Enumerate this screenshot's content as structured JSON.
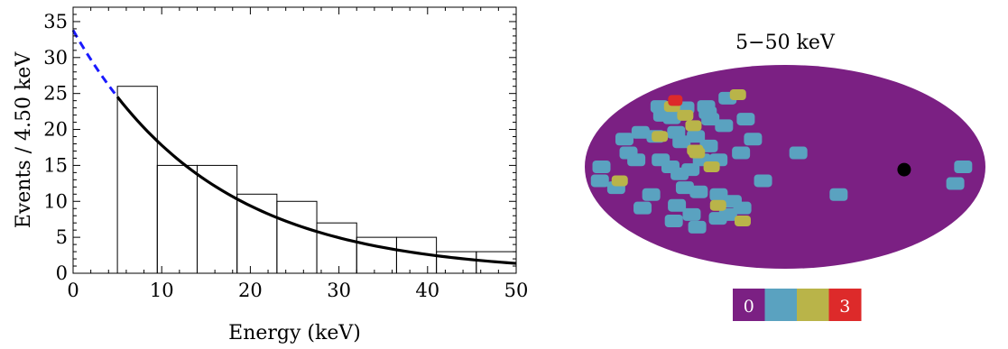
{
  "chart_data": [
    {
      "type": "bar",
      "title": "",
      "xlabel": "Energy (keV)",
      "ylabel": "Events / 4.50 keV",
      "xlim": [
        0,
        50
      ],
      "ylim": [
        0,
        37
      ],
      "xticks": [
        0,
        10,
        20,
        30,
        40,
        50
      ],
      "yticks": [
        0,
        5,
        10,
        15,
        20,
        25,
        30,
        35
      ],
      "bin_edges": [
        5,
        9.5,
        14,
        18.5,
        23,
        27.5,
        32,
        36.5,
        41,
        45.5,
        50
      ],
      "values": [
        26,
        15,
        15,
        11,
        10,
        7,
        5,
        5,
        3,
        3
      ],
      "fit_curve": {
        "form": "exponential",
        "amplitude": 33.8,
        "decay_keV": 15.6,
        "solid_range": [
          5,
          50
        ],
        "dashed_range": [
          0,
          5
        ],
        "solid_color": "#000000",
        "dashed_color": "#1a1aff"
      }
    },
    {
      "type": "heatmap",
      "title": "5−50 keV",
      "projection": "mollweide",
      "colorbar": {
        "colors": [
          "#7b2083",
          "#5aa2c0",
          "#b9b449",
          "#dd2a2a"
        ],
        "labels": [
          "0",
          "3"
        ]
      },
      "background_level": 0,
      "marker": {
        "lon": -107,
        "lat": -2,
        "color": "#000000"
      },
      "event_levels": {
        "one_event_lonlat": [
          [
            140,
            45
          ],
          [
            128,
            38
          ],
          [
            116,
            36
          ],
          [
            110,
            44
          ],
          [
            88,
            45
          ],
          [
            82,
            40
          ],
          [
            76,
            35
          ],
          [
            150,
            20
          ],
          [
            142,
            10
          ],
          [
            134,
            5
          ],
          [
            165,
            0
          ],
          [
            168,
            -10
          ],
          [
            155,
            -15
          ],
          [
            138,
            25
          ],
          [
            122,
            22
          ],
          [
            104,
            25
          ],
          [
            96,
            18
          ],
          [
            84,
            22
          ],
          [
            70,
            15
          ],
          [
            112,
            5
          ],
          [
            103,
            0
          ],
          [
            95,
            -5
          ],
          [
            85,
            -2
          ],
          [
            75,
            5
          ],
          [
            92,
            -15
          ],
          [
            80,
            -18
          ],
          [
            62,
            -20
          ],
          [
            50,
            -25
          ],
          [
            42,
            -30
          ],
          [
            58,
            -35
          ],
          [
            70,
            -38
          ],
          [
            95,
            -35
          ],
          [
            105,
            -28
          ],
          [
            125,
            -20
          ],
          [
            140,
            -30
          ],
          [
            98,
            -45
          ],
          [
            118,
            -40
          ],
          [
            60,
            5
          ],
          [
            40,
            10
          ],
          [
            30,
            20
          ],
          [
            20,
            -10
          ],
          [
            60,
            30
          ],
          [
            70,
            52
          ],
          [
            40,
            35
          ],
          [
            -12,
            10
          ],
          [
            -50,
            -20
          ],
          [
            -160,
            0
          ],
          [
            -155,
            -12
          ]
        ],
        "two_event_lonlat": [
          [
            126,
            45
          ],
          [
            104,
            38
          ],
          [
            118,
            22
          ],
          [
            90,
            30
          ],
          [
            80,
            10
          ],
          [
            66,
            0
          ],
          [
            150,
            -10
          ],
          [
            65,
            -28
          ],
          [
            45,
            -40
          ],
          [
            82,
            12
          ],
          [
            60,
            55
          ]
        ],
        "three_event_lonlat": [
          [
            130,
            50
          ]
        ]
      }
    }
  ]
}
